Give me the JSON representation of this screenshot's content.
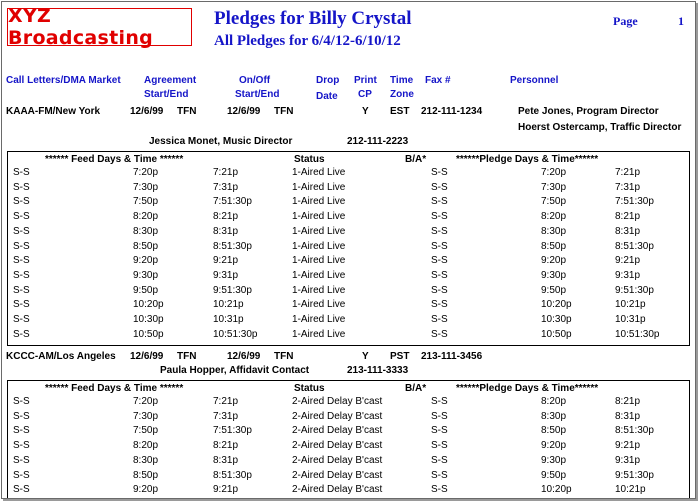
{
  "header": {
    "logo": "XYZ Broadcasting",
    "title": "Pledges for Billy Crystal",
    "subtitle": "All Pledges for 6/4/12-6/10/12",
    "page_label": "Page",
    "page_number": "1"
  },
  "columns": {
    "call_letters": "Call Letters/DMA Market",
    "agreement": "Agreement",
    "agreement2": "Start/End",
    "onoff": "On/Off",
    "onoff2": "Start/End",
    "drop": "Drop",
    "drop2": "Date",
    "print": "Print",
    "print2": "CP",
    "time": "Time",
    "time2": "Zone",
    "fax": "Fax #",
    "personnel": "Personnel"
  },
  "table_headers": {
    "feed": "****** Feed Days & Time ******",
    "status": "Status",
    "ba": "B/A*",
    "pledge": "******Pledge Days & Time******"
  },
  "stations": [
    {
      "call_letters": "KAAA-FM/New York",
      "agreement_start": "12/6/99",
      "agreement_end": "TFN",
      "onoff_start": "12/6/99",
      "onoff_end": "TFN",
      "print_cp": "Y",
      "time_zone": "EST",
      "fax": "212-111-1234",
      "personnel_1": "Pete Jones, Program Director",
      "personnel_2": "Hoerst Ostercamp, Traffic Director",
      "contact": "Jessica Monet, Music Director",
      "contact_phone": "212-111-2223",
      "rows": [
        {
          "days": "S-S",
          "feed_start": "7:20p",
          "feed_end": "7:21p",
          "status": "1-Aired Live",
          "pledge_days": "S-S",
          "pledge_start": "7:20p",
          "pledge_end": "7:21p"
        },
        {
          "days": "S-S",
          "feed_start": "7:30p",
          "feed_end": "7:31p",
          "status": "1-Aired Live",
          "pledge_days": "S-S",
          "pledge_start": "7:30p",
          "pledge_end": "7:31p"
        },
        {
          "days": "S-S",
          "feed_start": "7:50p",
          "feed_end": "7:51:30p",
          "status": "1-Aired Live",
          "pledge_days": "S-S",
          "pledge_start": "7:50p",
          "pledge_end": "7:51:30p"
        },
        {
          "days": "S-S",
          "feed_start": "8:20p",
          "feed_end": "8:21p",
          "status": "1-Aired Live",
          "pledge_days": "S-S",
          "pledge_start": "8:20p",
          "pledge_end": "8:21p"
        },
        {
          "days": "S-S",
          "feed_start": "8:30p",
          "feed_end": "8:31p",
          "status": "1-Aired Live",
          "pledge_days": "S-S",
          "pledge_start": "8:30p",
          "pledge_end": "8:31p"
        },
        {
          "days": "S-S",
          "feed_start": "8:50p",
          "feed_end": "8:51:30p",
          "status": "1-Aired Live",
          "pledge_days": "S-S",
          "pledge_start": "8:50p",
          "pledge_end": "8:51:30p"
        },
        {
          "days": "S-S",
          "feed_start": "9:20p",
          "feed_end": "9:21p",
          "status": "1-Aired Live",
          "pledge_days": "S-S",
          "pledge_start": "9:20p",
          "pledge_end": "9:21p"
        },
        {
          "days": "S-S",
          "feed_start": "9:30p",
          "feed_end": "9:31p",
          "status": "1-Aired Live",
          "pledge_days": "S-S",
          "pledge_start": "9:30p",
          "pledge_end": "9:31p"
        },
        {
          "days": "S-S",
          "feed_start": "9:50p",
          "feed_end": "9:51:30p",
          "status": "1-Aired Live",
          "pledge_days": "S-S",
          "pledge_start": "9:50p",
          "pledge_end": "9:51:30p"
        },
        {
          "days": "S-S",
          "feed_start": "10:20p",
          "feed_end": "10:21p",
          "status": "1-Aired Live",
          "pledge_days": "S-S",
          "pledge_start": "10:20p",
          "pledge_end": "10:21p"
        },
        {
          "days": "S-S",
          "feed_start": "10:30p",
          "feed_end": "10:31p",
          "status": "1-Aired Live",
          "pledge_days": "S-S",
          "pledge_start": "10:30p",
          "pledge_end": "10:31p"
        },
        {
          "days": "S-S",
          "feed_start": "10:50p",
          "feed_end": "10:51:30p",
          "status": "1-Aired Live",
          "pledge_days": "S-S",
          "pledge_start": "10:50p",
          "pledge_end": "10:51:30p"
        }
      ]
    },
    {
      "call_letters": "KCCC-AM/Los Angeles",
      "agreement_start": "12/6/99",
      "agreement_end": "TFN",
      "onoff_start": "12/6/99",
      "onoff_end": "TFN",
      "print_cp": "Y",
      "time_zone": "PST",
      "fax": "213-111-3456",
      "contact": "Paula Hopper, Affidavit Contact",
      "contact_phone": "213-111-3333",
      "rows": [
        {
          "days": "S-S",
          "feed_start": "7:20p",
          "feed_end": "7:21p",
          "status": "2-Aired Delay B'cast",
          "pledge_days": "S-S",
          "pledge_start": "8:20p",
          "pledge_end": "8:21p"
        },
        {
          "days": "S-S",
          "feed_start": "7:30p",
          "feed_end": "7:31p",
          "status": "2-Aired Delay B'cast",
          "pledge_days": "S-S",
          "pledge_start": "8:30p",
          "pledge_end": "8:31p"
        },
        {
          "days": "S-S",
          "feed_start": "7:50p",
          "feed_end": "7:51:30p",
          "status": "2-Aired Delay B'cast",
          "pledge_days": "S-S",
          "pledge_start": "8:50p",
          "pledge_end": "8:51:30p"
        },
        {
          "days": "S-S",
          "feed_start": "8:20p",
          "feed_end": "8:21p",
          "status": "2-Aired Delay B'cast",
          "pledge_days": "S-S",
          "pledge_start": "9:20p",
          "pledge_end": "9:21p"
        },
        {
          "days": "S-S",
          "feed_start": "8:30p",
          "feed_end": "8:31p",
          "status": "2-Aired Delay B'cast",
          "pledge_days": "S-S",
          "pledge_start": "9:30p",
          "pledge_end": "9:31p"
        },
        {
          "days": "S-S",
          "feed_start": "8:50p",
          "feed_end": "8:51:30p",
          "status": "2-Aired Delay B'cast",
          "pledge_days": "S-S",
          "pledge_start": "9:50p",
          "pledge_end": "9:51:30p"
        },
        {
          "days": "S-S",
          "feed_start": "9:20p",
          "feed_end": "9:21p",
          "status": "2-Aired Delay B'cast",
          "pledge_days": "S-S",
          "pledge_start": "10:20p",
          "pledge_end": "10:21p"
        }
      ]
    }
  ]
}
